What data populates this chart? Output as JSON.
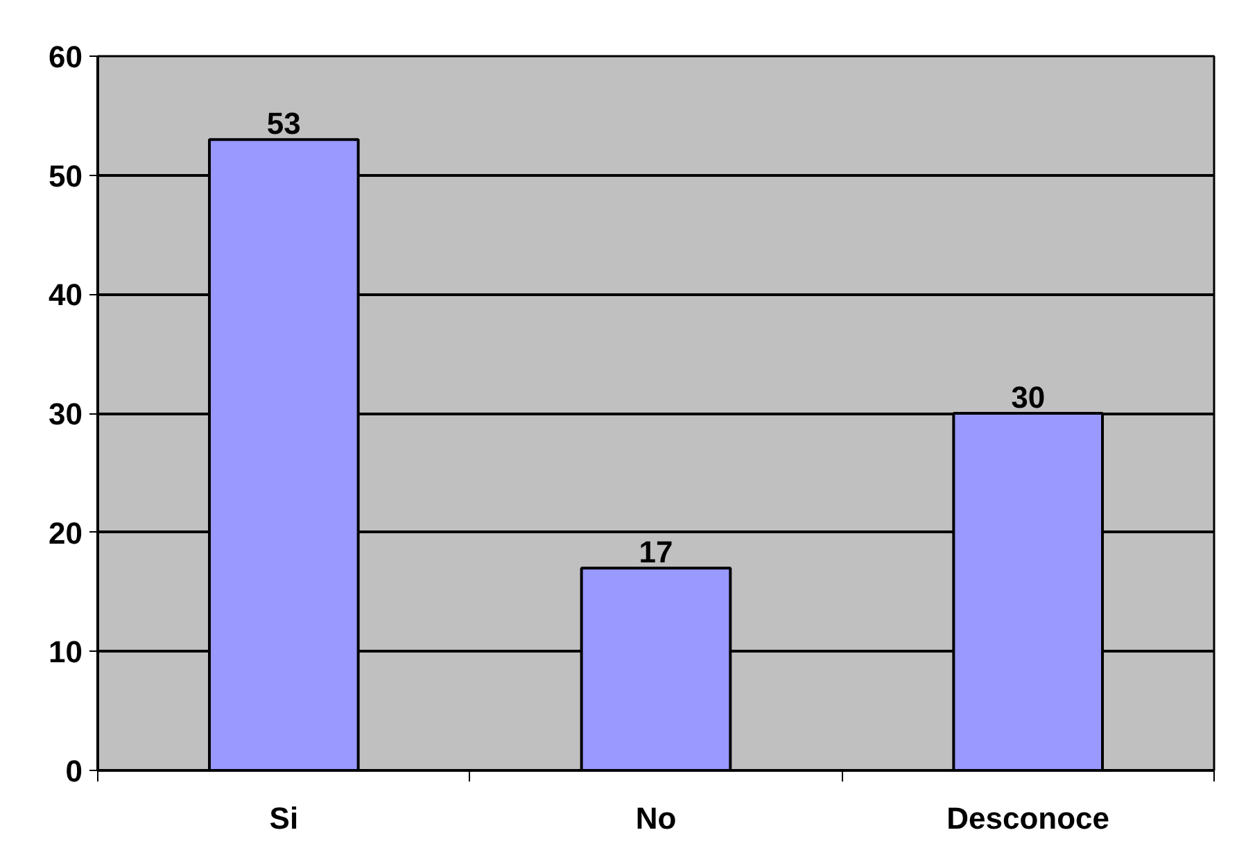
{
  "chart_data": {
    "type": "bar",
    "categories": [
      "Si",
      "No",
      "Desconoce"
    ],
    "values": [
      53,
      17,
      30
    ],
    "color": "#9999ff",
    "ylim": [
      0,
      60
    ],
    "yticks": [
      0,
      10,
      20,
      30,
      40,
      50,
      60
    ],
    "grid": "y",
    "data_labels": true
  }
}
